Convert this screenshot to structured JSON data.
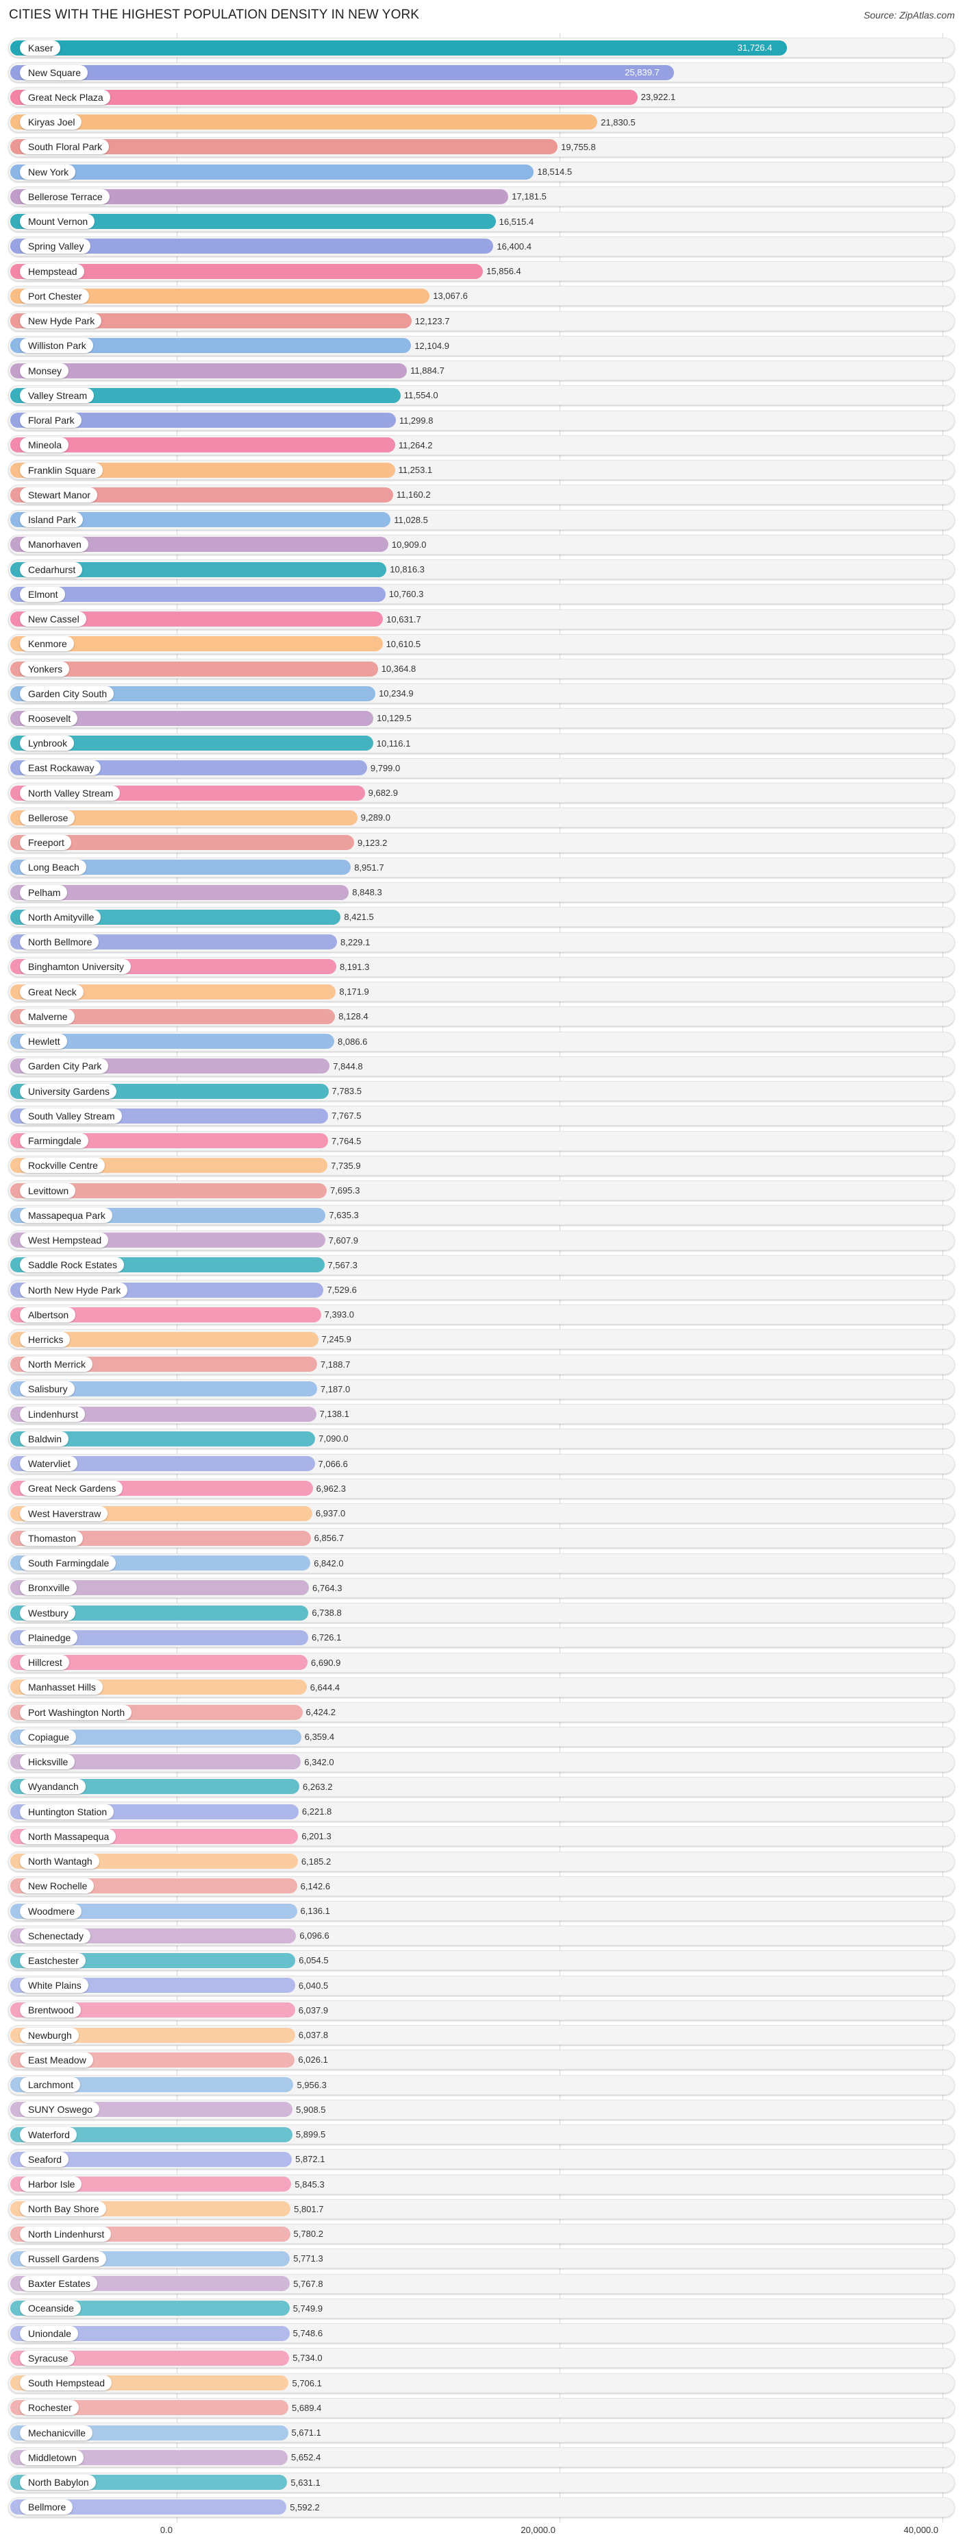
{
  "header": {
    "title": "CITIES WITH THE HIGHEST POPULATION DENSITY IN NEW YORK",
    "source": "Source: ZipAtlas.com"
  },
  "axis": {
    "ticks": [
      {
        "value": 0,
        "label": "0.0"
      },
      {
        "value": 20000,
        "label": "20,000.0"
      },
      {
        "value": 40000,
        "label": "40,000.0"
      }
    ]
  },
  "palette": [
    "#23a6b5",
    "#8d9ae0",
    "#f27ba0",
    "#f9b778",
    "#e98f8c",
    "#80afe2",
    "#bb95c4"
  ],
  "chart_data": {
    "type": "bar",
    "orientation": "horizontal",
    "title": "CITIES WITH THE HIGHEST POPULATION DENSITY IN NEW YORK",
    "xlabel": "",
    "ylabel": "",
    "xlim": [
      0,
      40000
    ],
    "grid": true,
    "categories": [
      "Kaser",
      "New Square",
      "Great Neck Plaza",
      "Kiryas Joel",
      "South Floral Park",
      "New York",
      "Bellerose Terrace",
      "Mount Vernon",
      "Spring Valley",
      "Hempstead",
      "Port Chester",
      "New Hyde Park",
      "Williston Park",
      "Monsey",
      "Valley Stream",
      "Floral Park",
      "Mineola",
      "Franklin Square",
      "Stewart Manor",
      "Island Park",
      "Manorhaven",
      "Cedarhurst",
      "Elmont",
      "New Cassel",
      "Kenmore",
      "Yonkers",
      "Garden City South",
      "Roosevelt",
      "Lynbrook",
      "East Rockaway",
      "North Valley Stream",
      "Bellerose",
      "Freeport",
      "Long Beach",
      "Pelham",
      "North Amityville",
      "North Bellmore",
      "Binghamton University",
      "Great Neck",
      "Malverne",
      "Hewlett",
      "Garden City Park",
      "University Gardens",
      "South Valley Stream",
      "Farmingdale",
      "Rockville Centre",
      "Levittown",
      "Massapequa Park",
      "West Hempstead",
      "Saddle Rock Estates",
      "North New Hyde Park",
      "Albertson",
      "Herricks",
      "North Merrick",
      "Salisbury",
      "Lindenhurst",
      "Baldwin",
      "Watervliet",
      "Great Neck Gardens",
      "West Haverstraw",
      "Thomaston",
      "South Farmingdale",
      "Bronxville",
      "Westbury",
      "Plainedge",
      "Hillcrest",
      "Manhasset Hills",
      "Port Washington North",
      "Copiague",
      "Hicksville",
      "Wyandanch",
      "Huntington Station",
      "North Massapequa",
      "North Wantagh",
      "New Rochelle",
      "Woodmere",
      "Schenectady",
      "Eastchester",
      "White Plains",
      "Brentwood",
      "Newburgh",
      "East Meadow",
      "Larchmont",
      "SUNY Oswego",
      "Waterford",
      "Seaford",
      "Harbor Isle",
      "North Bay Shore",
      "North Lindenhurst",
      "Russell Gardens",
      "Baxter Estates",
      "Oceanside",
      "Uniondale",
      "Syracuse",
      "South Hempstead",
      "Rochester",
      "Mechanicville",
      "Middletown",
      "North Babylon",
      "Bellmore"
    ],
    "values": [
      31726.4,
      25839.7,
      23922.1,
      21830.5,
      19755.8,
      18514.5,
      17181.5,
      16515.4,
      16400.4,
      15856.4,
      13067.6,
      12123.7,
      12104.9,
      11884.7,
      11554.0,
      11299.8,
      11264.2,
      11253.1,
      11160.2,
      11028.5,
      10909.0,
      10816.3,
      10760.3,
      10631.7,
      10610.5,
      10364.8,
      10234.9,
      10129.5,
      10116.1,
      9799.0,
      9682.9,
      9289.0,
      9123.2,
      8951.7,
      8848.3,
      8421.5,
      8229.1,
      8191.3,
      8171.9,
      8128.4,
      8086.6,
      7844.8,
      7783.5,
      7767.5,
      7764.5,
      7735.9,
      7695.3,
      7635.3,
      7607.9,
      7567.3,
      7529.6,
      7393.0,
      7245.9,
      7188.7,
      7187.0,
      7138.1,
      7090.0,
      7066.6,
      6962.3,
      6937.0,
      6856.7,
      6842.0,
      6764.3,
      6738.8,
      6726.1,
      6690.9,
      6644.4,
      6424.2,
      6359.4,
      6342.0,
      6263.2,
      6221.8,
      6201.3,
      6185.2,
      6142.6,
      6136.1,
      6096.6,
      6054.5,
      6040.5,
      6037.9,
      6037.8,
      6026.1,
      5956.3,
      5908.5,
      5899.5,
      5872.1,
      5845.3,
      5801.7,
      5780.2,
      5771.3,
      5767.8,
      5749.9,
      5748.6,
      5734.0,
      5706.1,
      5689.4,
      5671.1,
      5652.4,
      5631.1,
      5592.2
    ],
    "value_labels": [
      "31,726.4",
      "25,839.7",
      "23,922.1",
      "21,830.5",
      "19,755.8",
      "18,514.5",
      "17,181.5",
      "16,515.4",
      "16,400.4",
      "15,856.4",
      "13,067.6",
      "12,123.7",
      "12,104.9",
      "11,884.7",
      "11,554.0",
      "11,299.8",
      "11,264.2",
      "11,253.1",
      "11,160.2",
      "11,028.5",
      "10,909.0",
      "10,816.3",
      "10,760.3",
      "10,631.7",
      "10,610.5",
      "10,364.8",
      "10,234.9",
      "10,129.5",
      "10,116.1",
      "9,799.0",
      "9,682.9",
      "9,289.0",
      "9,123.2",
      "8,951.7",
      "8,848.3",
      "8,421.5",
      "8,229.1",
      "8,191.3",
      "8,171.9",
      "8,128.4",
      "8,086.6",
      "7,844.8",
      "7,783.5",
      "7,767.5",
      "7,764.5",
      "7,735.9",
      "7,695.3",
      "7,635.3",
      "7,607.9",
      "7,567.3",
      "7,529.6",
      "7,393.0",
      "7,245.9",
      "7,188.7",
      "7,187.0",
      "7,138.1",
      "7,090.0",
      "7,066.6",
      "6,962.3",
      "6,937.0",
      "6,856.7",
      "6,842.0",
      "6,764.3",
      "6,738.8",
      "6,726.1",
      "6,690.9",
      "6,644.4",
      "6,424.2",
      "6,359.4",
      "6,342.0",
      "6,263.2",
      "6,221.8",
      "6,201.3",
      "6,185.2",
      "6,142.6",
      "6,136.1",
      "6,096.6",
      "6,054.5",
      "6,040.5",
      "6,037.9",
      "6,037.8",
      "6,026.1",
      "5,956.3",
      "5,908.5",
      "5,899.5",
      "5,872.1",
      "5,845.3",
      "5,801.7",
      "5,780.2",
      "5,771.3",
      "5,767.8",
      "5,749.9",
      "5,748.6",
      "5,734.0",
      "5,706.1",
      "5,689.4",
      "5,671.1",
      "5,652.4",
      "5,631.1",
      "5,592.2"
    ],
    "tick_labels": [
      "0.0",
      "20,000.0",
      "40,000.0"
    ],
    "legend": null,
    "source": "Source: ZipAtlas.com"
  }
}
